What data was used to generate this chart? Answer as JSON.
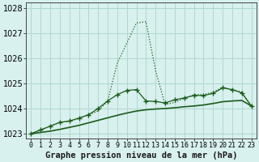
{
  "title": "Graphe pression niveau de la mer (hPa)",
  "background_color": "#d8f0ee",
  "grid_color": "#b0d8d0",
  "line_color_dark": "#1a5c1a",
  "x_values": [
    0,
    1,
    2,
    3,
    4,
    5,
    6,
    7,
    8,
    9,
    10,
    11,
    12,
    13,
    14,
    15,
    16,
    17,
    18,
    19,
    20,
    21,
    22,
    23
  ],
  "y_dotted": [
    1023.0,
    1023.15,
    1023.3,
    1023.45,
    1023.5,
    1023.6,
    1023.75,
    1023.9,
    1024.3,
    1025.8,
    1026.6,
    1027.4,
    1027.45,
    1025.5,
    1024.15,
    1024.25,
    1024.4,
    1024.55,
    1024.55,
    1024.65,
    1024.85,
    1024.75,
    1024.65,
    1024.1
  ],
  "y_markers": [
    1023.0,
    1023.15,
    1023.3,
    1023.45,
    1023.5,
    1023.62,
    1023.75,
    1024.0,
    1024.3,
    1024.55,
    1024.72,
    1024.75,
    1024.3,
    1024.28,
    1024.22,
    1024.35,
    1024.42,
    1024.52,
    1024.52,
    1024.6,
    1024.82,
    1024.75,
    1024.62,
    1024.1
  ],
  "y_linear": [
    1023.0,
    1023.05,
    1023.1,
    1023.17,
    1023.25,
    1023.33,
    1023.43,
    1023.53,
    1023.63,
    1023.73,
    1023.82,
    1023.9,
    1023.95,
    1023.98,
    1024.0,
    1024.03,
    1024.07,
    1024.1,
    1024.14,
    1024.2,
    1024.27,
    1024.3,
    1024.32,
    1024.1
  ],
  "ylim": [
    1022.8,
    1028.2
  ],
  "yticks": [
    1023,
    1024,
    1025,
    1026,
    1027,
    1028
  ],
  "tick_fontsize": 7,
  "title_fontsize": 7.5
}
